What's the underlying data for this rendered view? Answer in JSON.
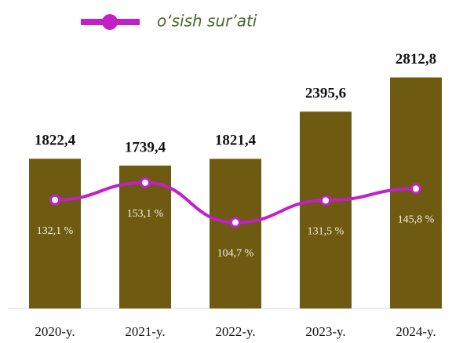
{
  "chart_data": {
    "type": "bar",
    "categories": [
      "2020-y.",
      "2021-y.",
      "2022-y.",
      "2023-y.",
      "2024-y."
    ],
    "series": [
      {
        "name": "bars",
        "type": "bar",
        "color": "#6f5a12",
        "values": [
          1822.4,
          1739.4,
          1821.4,
          2395.6,
          2812.8
        ],
        "value_labels": [
          "1822,4",
          "1739,4",
          "1821,4",
          "2395,6",
          "2812,8"
        ]
      },
      {
        "name": "o‘sish sur’ati",
        "type": "line",
        "axis": "y2",
        "color": "#c21fc9",
        "values": [
          132.1,
          153.1,
          104.7,
          131.5,
          145.8
        ],
        "value_labels": [
          "132,1 %",
          "153,1 %",
          "104,7 %",
          "131,5 %",
          "145,8 %"
        ]
      }
    ],
    "ylim": [
      0,
      3000
    ],
    "y2lim": [
      0,
      300
    ],
    "legend": "top"
  }
}
